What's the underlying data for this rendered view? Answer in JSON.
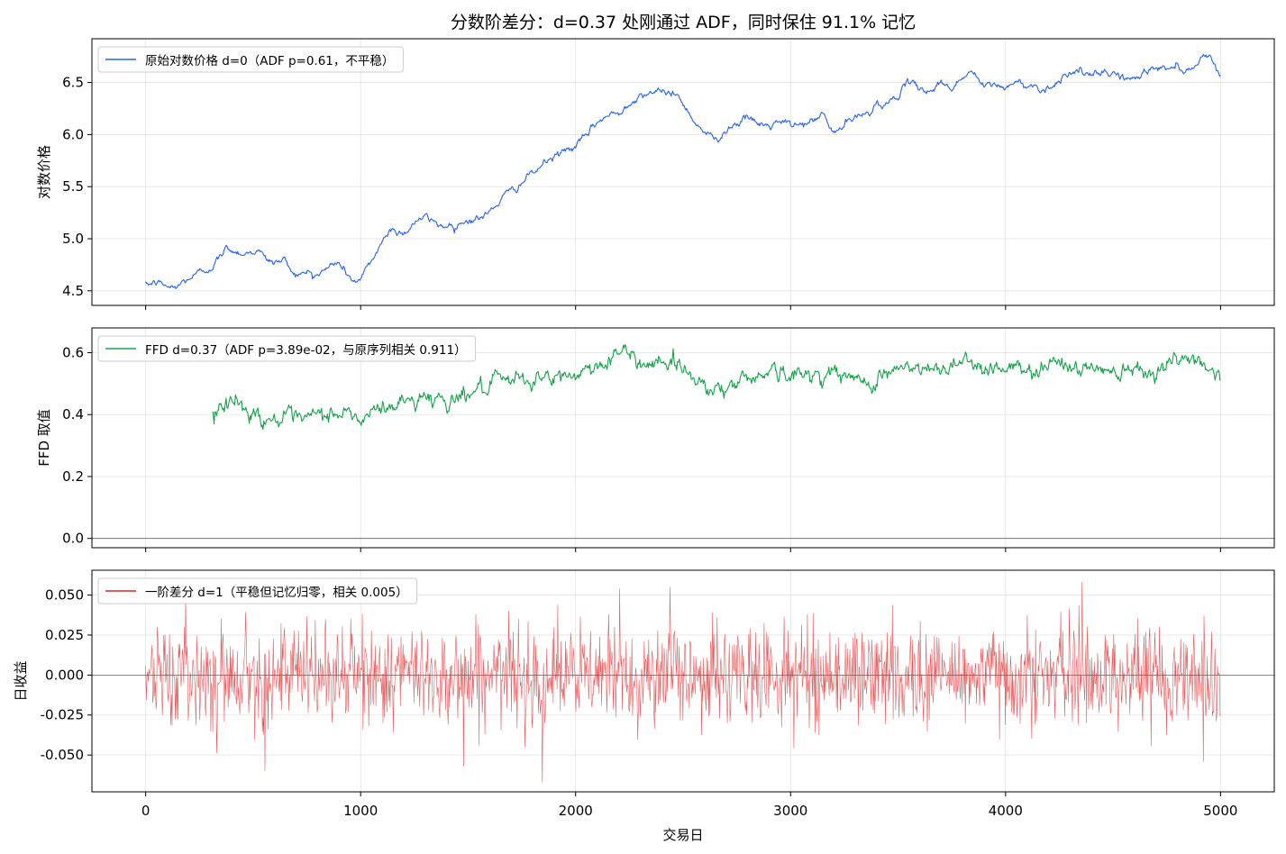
{
  "title": "分数阶差分：d=0.37 处刚通过 ADF，同时保住 91.1% 记忆",
  "xlabel": "交易日",
  "chart_data": [
    {
      "type": "line",
      "ylabel": "对数价格",
      "xlim": [
        -250,
        5250
      ],
      "ylim": [
        4.36,
        6.92
      ],
      "yticks": [
        "4.5",
        "5.0",
        "5.5",
        "6.0",
        "6.5"
      ],
      "xticks": [
        0,
        1000,
        2000,
        3000,
        4000,
        5000
      ],
      "grid": true,
      "legend_position": "top-left",
      "series": [
        {
          "name": "原始对数价格 d=0（ADF p=0.61，不平稳）",
          "color": "#2563eb",
          "x_range": [
            0,
            5000
          ],
          "anchors_x": [
            0,
            50,
            130,
            200,
            260,
            300,
            340,
            380,
            420,
            470,
            520,
            560,
            600,
            640,
            680,
            720,
            760,
            800,
            840,
            880,
            920,
            960,
            1000,
            1050,
            1100,
            1150,
            1200,
            1260,
            1300,
            1350,
            1400,
            1450,
            1500,
            1560,
            1600,
            1650,
            1700,
            1750,
            1800,
            1850,
            1900,
            1950,
            2000,
            2050,
            2100,
            2150,
            2200,
            2250,
            2300,
            2350,
            2400,
            2450,
            2500,
            2550,
            2600,
            2650,
            2700,
            2750,
            2800,
            2850,
            2900,
            2950,
            3000,
            3050,
            3100,
            3150,
            3200,
            3250,
            3300,
            3350,
            3400,
            3450,
            3500,
            3550,
            3600,
            3650,
            3700,
            3750,
            3800,
            3850,
            3900,
            3950,
            4000,
            4050,
            4100,
            4150,
            4200,
            4250,
            4300,
            4350,
            4400,
            4450,
            4500,
            4550,
            4600,
            4650,
            4700,
            4750,
            4800,
            4850,
            4900,
            4950,
            5000
          ],
          "anchors_y": [
            4.55,
            4.58,
            4.52,
            4.62,
            4.68,
            4.73,
            4.8,
            4.92,
            4.88,
            4.86,
            4.9,
            4.8,
            4.77,
            4.8,
            4.7,
            4.65,
            4.68,
            4.66,
            4.7,
            4.78,
            4.72,
            4.6,
            4.6,
            4.78,
            4.98,
            5.1,
            5.05,
            5.18,
            5.2,
            5.15,
            5.12,
            5.15,
            5.18,
            5.2,
            5.25,
            5.38,
            5.45,
            5.55,
            5.62,
            5.72,
            5.78,
            5.85,
            5.88,
            5.98,
            6.12,
            6.18,
            6.2,
            6.32,
            6.38,
            6.42,
            6.38,
            6.42,
            6.3,
            6.15,
            6.02,
            5.95,
            6.05,
            6.12,
            6.15,
            6.1,
            6.08,
            6.12,
            6.08,
            6.1,
            6.12,
            6.2,
            6.0,
            6.1,
            6.15,
            6.2,
            6.3,
            6.28,
            6.4,
            6.48,
            6.45,
            6.42,
            6.5,
            6.45,
            6.55,
            6.6,
            6.45,
            6.48,
            6.45,
            6.5,
            6.48,
            6.45,
            6.45,
            6.52,
            6.62,
            6.6,
            6.55,
            6.58,
            6.6,
            6.55,
            6.52,
            6.6,
            6.65,
            6.62,
            6.68,
            6.6,
            6.72,
            6.78,
            6.55
          ],
          "noise": 0.025
        }
      ]
    },
    {
      "type": "line",
      "ylabel": "FFD 取值",
      "xlim": [
        -250,
        5250
      ],
      "ylim": [
        -0.03,
        0.68
      ],
      "yticks": [
        "0.0",
        "0.2",
        "0.4",
        "0.6"
      ],
      "xticks": [
        0,
        1000,
        2000,
        3000,
        4000,
        5000
      ],
      "grid": true,
      "hline": 0,
      "legend_position": "top-left",
      "series": [
        {
          "name": "FFD d=0.37（ADF p=3.89e-02，与原序列相关 0.911）",
          "color": "#16a34a",
          "x_range": [
            310,
            5000
          ],
          "anchors_x": [
            310,
            400,
            500,
            600,
            700,
            800,
            900,
            1000,
            1100,
            1200,
            1300,
            1400,
            1500,
            1600,
            1700,
            1800,
            1900,
            2000,
            2100,
            2200,
            2300,
            2400,
            2500,
            2600,
            2700,
            2800,
            2900,
            3000,
            3100,
            3200,
            3300,
            3400,
            3500,
            3600,
            3700,
            3800,
            3900,
            4000,
            4100,
            4200,
            4300,
            4400,
            4500,
            4600,
            4700,
            4800,
            4900,
            5000
          ],
          "anchors_y": [
            0.42,
            0.45,
            0.4,
            0.39,
            0.37,
            0.39,
            0.41,
            0.38,
            0.42,
            0.44,
            0.46,
            0.45,
            0.47,
            0.49,
            0.5,
            0.52,
            0.51,
            0.53,
            0.56,
            0.6,
            0.57,
            0.58,
            0.55,
            0.5,
            0.48,
            0.52,
            0.55,
            0.52,
            0.53,
            0.54,
            0.5,
            0.52,
            0.55,
            0.54,
            0.54,
            0.59,
            0.55,
            0.56,
            0.53,
            0.58,
            0.55,
            0.55,
            0.55,
            0.56,
            0.55,
            0.57,
            0.58,
            0.53
          ],
          "noise": 0.02
        }
      ]
    },
    {
      "type": "line",
      "ylabel": "日收益",
      "xlim": [
        -250,
        5250
      ],
      "ylim": [
        -0.073,
        0.0655
      ],
      "yticks": [
        "0.050",
        "0.025",
        "0.000",
        "-0.025",
        "-0.050"
      ],
      "ytick_values": [
        0.05,
        0.025,
        0,
        -0.025,
        -0.05
      ],
      "xticks": [
        0,
        1000,
        2000,
        3000,
        4000,
        5000
      ],
      "xtick_labels": [
        "0",
        "1000",
        "2000",
        "3000",
        "4000",
        "5000"
      ],
      "grid": true,
      "hline": 0,
      "legend_position": "top-left",
      "series": [
        {
          "name": "一阶差分 d=1（平稳但记忆归零，相关 0.005）",
          "color": "#dc2626",
          "x_range": [
            0,
            5000
          ],
          "std": 0.0152,
          "extremes": [
            {
              "x": 555,
              "y": -0.06
            },
            {
              "x": 1845,
              "y": -0.067
            },
            {
              "x": 2205,
              "y": 0.054
            },
            {
              "x": 2440,
              "y": 0.055
            },
            {
              "x": 4355,
              "y": 0.058
            },
            {
              "x": 1480,
              "y": -0.057
            },
            {
              "x": 4920,
              "y": -0.054
            }
          ]
        }
      ]
    }
  ]
}
